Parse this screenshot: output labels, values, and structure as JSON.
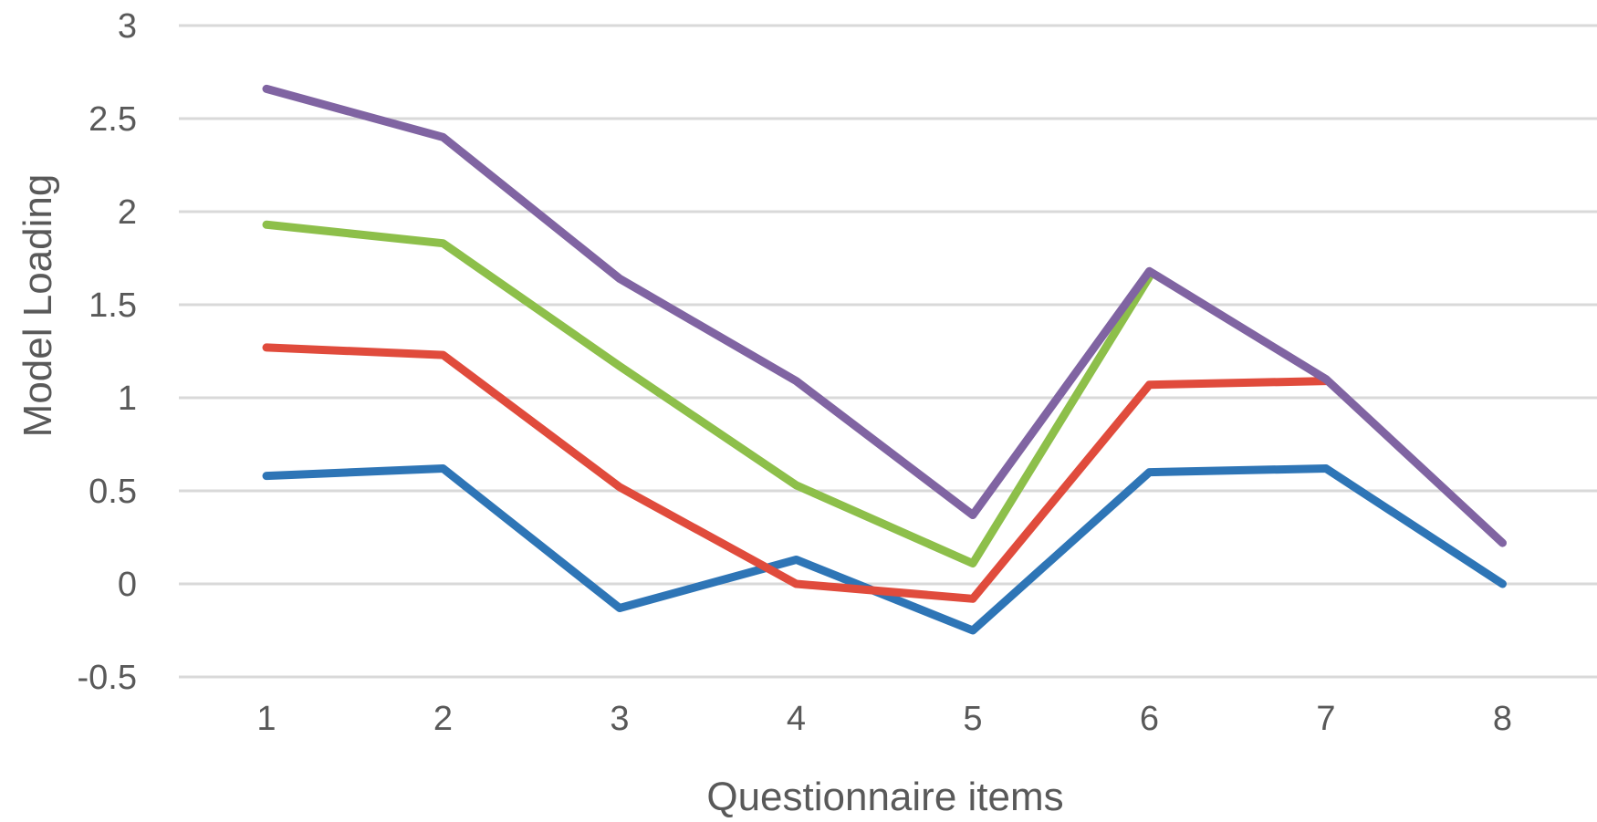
{
  "chart_data": {
    "type": "line",
    "title": "",
    "xlabel": "Questionnaire items",
    "ylabel": "Model Loading",
    "categories": [
      "1",
      "2",
      "3",
      "4",
      "5",
      "6",
      "7",
      "8"
    ],
    "y_ticks": [
      "3",
      "2.5",
      "2",
      "1.5",
      "1",
      "0.5",
      "0",
      "-0.5"
    ],
    "ylim": [
      -0.5,
      3
    ],
    "grid": true,
    "legend": "none",
    "series": [
      {
        "color": "#2e75b6",
        "values": [
          0.58,
          0.62,
          -0.13,
          0.13,
          -0.25,
          0.6,
          0.62,
          0.0
        ]
      },
      {
        "color": "#e04b3c",
        "values": [
          1.27,
          1.23,
          0.52,
          0.0,
          -0.08,
          1.07,
          1.09,
          null
        ]
      },
      {
        "color": "#8dbf4a",
        "values": [
          1.93,
          1.83,
          1.17,
          0.53,
          0.11,
          1.65,
          null,
          null
        ]
      },
      {
        "color": "#8064a2",
        "values": [
          2.66,
          2.4,
          1.64,
          1.09,
          0.37,
          1.68,
          1.1,
          0.22
        ]
      }
    ]
  }
}
